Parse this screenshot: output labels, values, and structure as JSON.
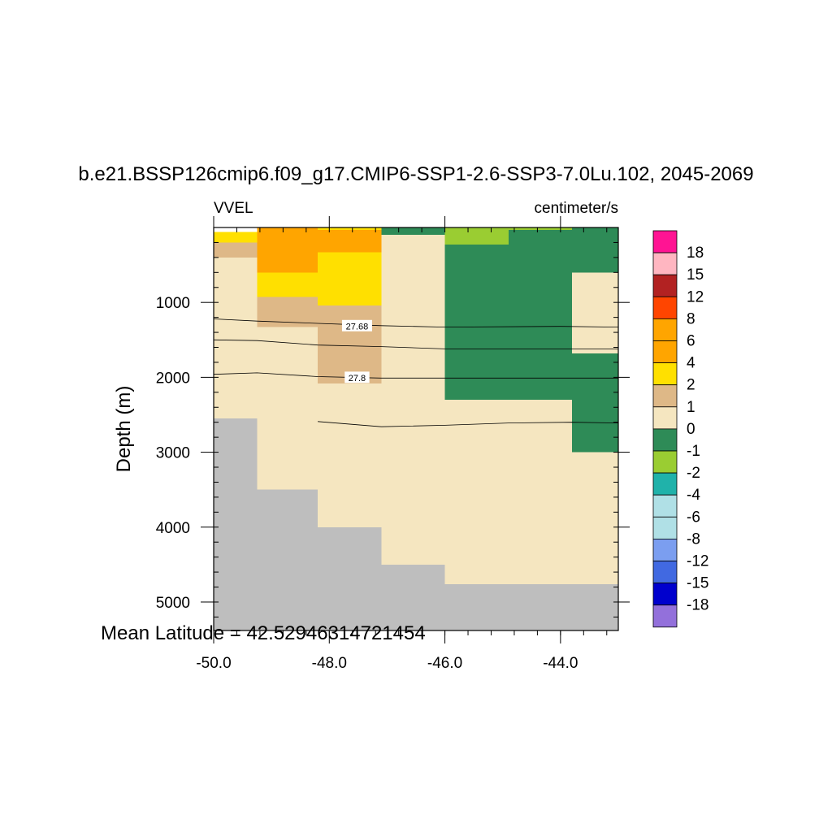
{
  "chart_data": {
    "type": "heatmap",
    "title": "b.e21.BSSP126cmip6.f09_g17.CMIP6-SSP1-2.6-SSP3-7.0Lu.102, 2045-2069",
    "left_label": "VVEL",
    "right_label": "centimeter/s",
    "ylabel": "Depth (m)",
    "footer_text": "Mean Latitude = 42.52946314721454",
    "xlim": [
      -50.0,
      -43.0
    ],
    "ylim": [
      5380,
      0
    ],
    "x_ticks": [
      -50.0,
      -48.0,
      -46.0,
      -44.0
    ],
    "x_tick_labels": [
      "-50.0",
      "-48.0",
      "-46.0",
      "-44.0"
    ],
    "y_ticks": [
      1000,
      2000,
      3000,
      4000,
      5000
    ],
    "y_tick_labels": [
      "1000",
      "2000",
      "3000",
      "4000",
      "5000"
    ],
    "missing_color": "#bebebe",
    "colorbar": {
      "labels": [
        "18",
        "15",
        "12",
        "8",
        "6",
        "4",
        "2",
        "1",
        "0",
        "-1",
        "-2",
        "-4",
        "-6",
        "-8",
        "-12",
        "-15",
        "-18"
      ],
      "colors": [
        "#ff1493",
        "#ffb6c1",
        "#b22222",
        "#ff4500",
        "#ffa500",
        "#ffa500",
        "#ffe000",
        "#deb887",
        "#f5e6c0",
        "#2e8b57",
        "#9acd32",
        "#20b2aa",
        "#b0e0e6",
        "#b0e0e6",
        "#7b9ef0",
        "#4169e1",
        "#0000cd",
        "#9370db"
      ]
    },
    "cells": [
      {
        "x": [
          -50.0,
          -49.25
        ],
        "depth": [
          60,
          200
        ],
        "color": "#ffe000"
      },
      {
        "x": [
          -50.0,
          -49.25
        ],
        "depth": [
          200,
          400
        ],
        "color": "#deb887"
      },
      {
        "x": [
          -50.0,
          -49.25
        ],
        "depth": [
          400,
          2550
        ],
        "color": "#f5e6c0"
      },
      {
        "x": [
          -49.25,
          -48.2
        ],
        "depth": [
          0,
          600
        ],
        "color": "#ffa500"
      },
      {
        "x": [
          -49.25,
          -48.2
        ],
        "depth": [
          600,
          930
        ],
        "color": "#ffe000"
      },
      {
        "x": [
          -49.25,
          -48.2
        ],
        "depth": [
          930,
          1330
        ],
        "color": "#deb887"
      },
      {
        "x": [
          -49.25,
          -48.2
        ],
        "depth": [
          1330,
          3500
        ],
        "color": "#f5e6c0"
      },
      {
        "x": [
          -48.2,
          -47.1
        ],
        "depth": [
          0,
          330
        ],
        "color": "#ffa500"
      },
      {
        "x": [
          -48.2,
          -47.1
        ],
        "depth": [
          330,
          1040
        ],
        "color": "#ffe000"
      },
      {
        "x": [
          -48.2,
          -47.1
        ],
        "depth": [
          1040,
          2080
        ],
        "color": "#deb887"
      },
      {
        "x": [
          -48.2,
          -47.1
        ],
        "depth": [
          2080,
          4000
        ],
        "color": "#f5e6c0"
      },
      {
        "x": [
          -47.1,
          -46.0
        ],
        "depth": [
          0,
          100
        ],
        "color": "#2e8b57"
      },
      {
        "x": [
          -47.1,
          -46.0
        ],
        "depth": [
          100,
          4500
        ],
        "color": "#f5e6c0"
      },
      {
        "x": [
          -46.0,
          -44.9
        ],
        "depth": [
          0,
          230
        ],
        "color": "#9acd32"
      },
      {
        "x": [
          -46.0,
          -44.9
        ],
        "depth": [
          230,
          2300
        ],
        "color": "#2e8b57"
      },
      {
        "x": [
          -46.0,
          -44.9
        ],
        "depth": [
          2300,
          4760
        ],
        "color": "#f5e6c0"
      },
      {
        "x": [
          -44.9,
          -43.8
        ],
        "depth": [
          0,
          2300
        ],
        "color": "#2e8b57"
      },
      {
        "x": [
          -44.9,
          -43.8
        ],
        "depth": [
          2300,
          4760
        ],
        "color": "#f5e6c0"
      },
      {
        "x": [
          -43.8,
          -43.0
        ],
        "depth": [
          0,
          600
        ],
        "color": "#2e8b57"
      },
      {
        "x": [
          -43.8,
          -43.0
        ],
        "depth": [
          600,
          1680
        ],
        "color": "#f5e6c0"
      },
      {
        "x": [
          -43.8,
          -43.0
        ],
        "depth": [
          1680,
          3000
        ],
        "color": "#2e8b57"
      },
      {
        "x": [
          -43.8,
          -43.0
        ],
        "depth": [
          3000,
          4760
        ],
        "color": "#f5e6c0"
      }
    ],
    "surface_strip": [
      {
        "x": [
          -48.2,
          -47.1
        ],
        "color": "#ffe000"
      },
      {
        "x": [
          -46.0,
          -44.9
        ],
        "color": "#9acd32"
      },
      {
        "x": [
          -44.9,
          -43.8
        ],
        "color": "#9acd32"
      }
    ],
    "bathymetry": [
      {
        "x": [
          -50.0,
          -49.25
        ],
        "depth": 2550
      },
      {
        "x": [
          -49.25,
          -48.2
        ],
        "depth": 3500
      },
      {
        "x": [
          -48.2,
          -47.1
        ],
        "depth": 4000
      },
      {
        "x": [
          -47.1,
          -46.0
        ],
        "depth": 4500
      },
      {
        "x": [
          -46.0,
          -43.0
        ],
        "depth": 4760
      }
    ],
    "contours": [
      {
        "label": "",
        "points": [
          [
            -50.0,
            1220
          ],
          [
            -49.25,
            1250
          ],
          [
            -48.2,
            1280
          ],
          [
            -47.1,
            1310
          ],
          [
            -46.0,
            1330
          ],
          [
            -44.0,
            1320
          ],
          [
            -43.0,
            1330
          ]
        ]
      },
      {
        "label": "27.68",
        "label_at": [
          -47.52,
          1310
        ],
        "points": [
          [
            -50.0,
            1500
          ],
          [
            -49.25,
            1510
          ],
          [
            -48.2,
            1570
          ],
          [
            -47.1,
            1590
          ],
          [
            -46.0,
            1620
          ],
          [
            -44.0,
            1620
          ],
          [
            -43.0,
            1620
          ]
        ]
      },
      {
        "label": "27.8",
        "label_at": [
          -47.52,
          2000
        ],
        "points": [
          [
            -50.0,
            1960
          ],
          [
            -49.25,
            1940
          ],
          [
            -48.2,
            1990
          ],
          [
            -47.1,
            2010
          ],
          [
            -46.0,
            2010
          ],
          [
            -44.0,
            2010
          ],
          [
            -43.0,
            2010
          ]
        ]
      },
      {
        "label": "",
        "points": [
          [
            -48.2,
            2590
          ],
          [
            -47.1,
            2660
          ],
          [
            -46.0,
            2640
          ],
          [
            -44.9,
            2610
          ],
          [
            -43.8,
            2600
          ],
          [
            -43.0,
            2610
          ]
        ]
      }
    ]
  }
}
